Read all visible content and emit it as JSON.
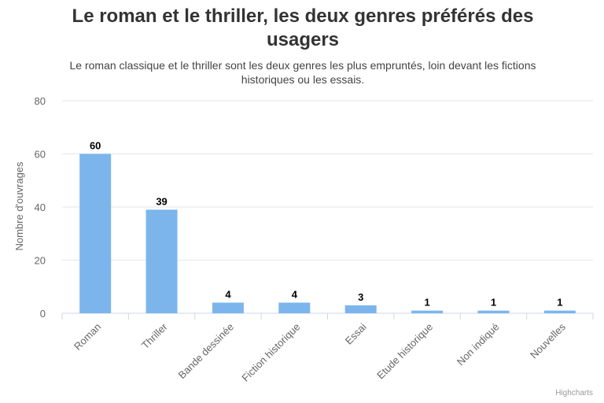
{
  "chart_data": {
    "type": "bar",
    "title": "Le roman et le thriller, les deux genres préférés des usagers",
    "subtitle": "Le roman classique et le thriller sont les deux genres les plus empruntés, loin devant les fictions historiques ou les essais.",
    "xlabel": "",
    "ylabel": "Nombre d'ouvrages",
    "ylim": [
      0,
      80
    ],
    "yticks": [
      0,
      20,
      40,
      60,
      80
    ],
    "categories": [
      "Roman",
      "Thriller",
      "Bande dessinée",
      "Fiction historique",
      "Essai",
      "Etude historique",
      "Non indiqué",
      "Nouvelles"
    ],
    "values": [
      60,
      39,
      4,
      4,
      3,
      1,
      1,
      1
    ],
    "bar_color": "#7cb5ec",
    "grid": true,
    "data_labels": true
  },
  "credits": "Highcharts"
}
